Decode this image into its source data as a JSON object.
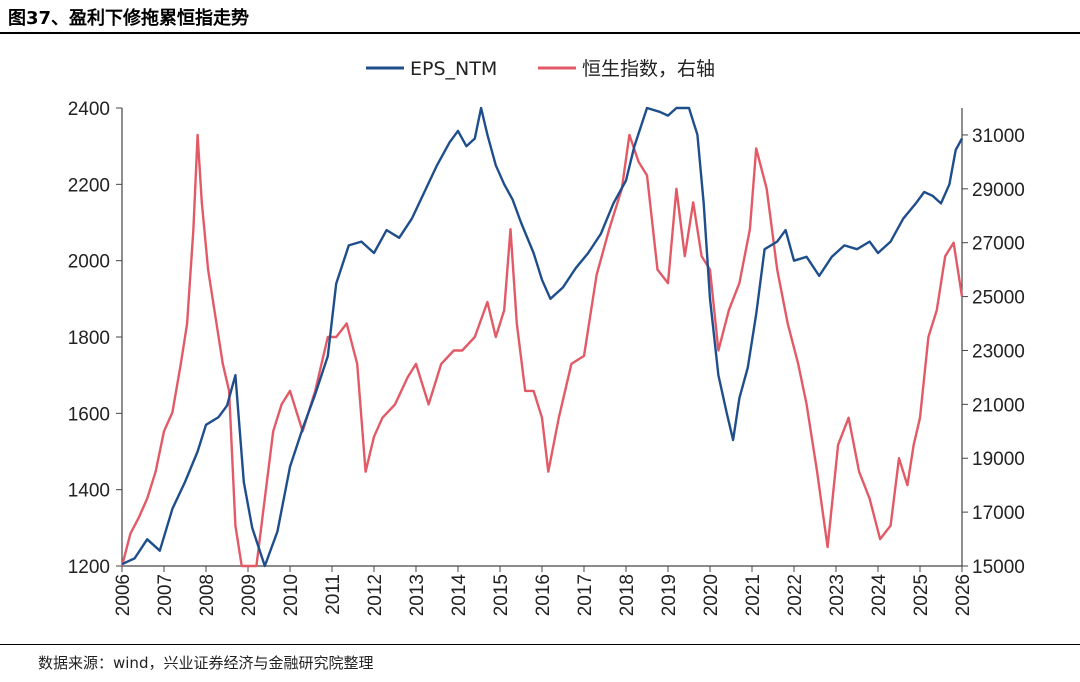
{
  "figure": {
    "title": "图37、盈利下修拖累恒指走势",
    "source": "数据来源：wind，兴业证券经济与金融研究院整理"
  },
  "chart_data": {
    "type": "line",
    "legend_position": "top-center",
    "grid": false,
    "x_ticks": [
      "2006",
      "2007",
      "2008",
      "2009",
      "2010",
      "2011",
      "2012",
      "2013",
      "2014",
      "2015",
      "2016",
      "2017",
      "2018",
      "2019",
      "2020",
      "2021",
      "2022",
      "2023",
      "2024",
      "2025",
      "2026"
    ],
    "xlim": [
      2006,
      2026
    ],
    "y_left": {
      "ylim": [
        1200,
        2400
      ],
      "ticks": [
        1200,
        1400,
        1600,
        1800,
        2000,
        2200,
        2400
      ]
    },
    "y_right": {
      "ylim": [
        15000,
        32000
      ],
      "ticks": [
        15000,
        17000,
        19000,
        21000,
        23000,
        25000,
        27000,
        29000,
        31000
      ]
    },
    "series": [
      {
        "name": "EPS_NTM",
        "axis": "left",
        "color": "#1f4e8c",
        "x": [
          2006.0,
          2006.3,
          2006.6,
          2006.9,
          2007.2,
          2007.5,
          2007.8,
          2008.0,
          2008.3,
          2008.5,
          2008.7,
          2008.9,
          2009.1,
          2009.4,
          2009.7,
          2010.0,
          2010.3,
          2010.6,
          2010.9,
          2011.1,
          2011.4,
          2011.7,
          2012.0,
          2012.3,
          2012.6,
          2012.9,
          2013.2,
          2013.5,
          2013.8,
          2014.0,
          2014.2,
          2014.4,
          2014.55,
          2014.7,
          2014.9,
          2015.1,
          2015.3,
          2015.5,
          2015.8,
          2016.0,
          2016.2,
          2016.5,
          2016.8,
          2017.1,
          2017.4,
          2017.7,
          2018.0,
          2018.2,
          2018.5,
          2018.8,
          2019.0,
          2019.2,
          2019.5,
          2019.7,
          2019.85,
          2020.0,
          2020.2,
          2020.4,
          2020.55,
          2020.7,
          2020.9,
          2021.1,
          2021.3,
          2021.6,
          2021.8,
          2022.0,
          2022.3,
          2022.6,
          2022.9,
          2023.2,
          2023.5,
          2023.8,
          2024.0,
          2024.3,
          2024.6,
          2024.9,
          2025.1,
          2025.3,
          2025.5,
          2025.7,
          2025.85,
          2026.0
        ],
        "values": [
          1205,
          1220,
          1270,
          1240,
          1350,
          1420,
          1500,
          1570,
          1590,
          1620,
          1700,
          1420,
          1300,
          1200,
          1290,
          1460,
          1560,
          1650,
          1750,
          1940,
          2040,
          2050,
          2020,
          2080,
          2060,
          2110,
          2180,
          2250,
          2310,
          2340,
          2300,
          2320,
          2400,
          2330,
          2250,
          2200,
          2160,
          2100,
          2020,
          1950,
          1900,
          1930,
          1980,
          2020,
          2070,
          2150,
          2210,
          2300,
          2400,
          2390,
          2380,
          2400,
          2400,
          2330,
          2150,
          1900,
          1700,
          1600,
          1530,
          1640,
          1720,
          1860,
          2030,
          2050,
          2080,
          2000,
          2010,
          1960,
          2010,
          2040,
          2030,
          2050,
          2020,
          2050,
          2110,
          2150,
          2180,
          2170,
          2150,
          2200,
          2290,
          2320
        ]
      },
      {
        "name": "恒生指数，右轴",
        "axis": "right",
        "color": "#e35a67",
        "x": [
          2006.0,
          2006.2,
          2006.4,
          2006.6,
          2006.8,
          2007.0,
          2007.2,
          2007.4,
          2007.55,
          2007.7,
          2007.8,
          2007.9,
          2008.05,
          2008.2,
          2008.4,
          2008.55,
          2008.7,
          2008.85,
          2009.0,
          2009.2,
          2009.4,
          2009.6,
          2009.8,
          2010.0,
          2010.3,
          2010.6,
          2010.9,
          2011.1,
          2011.35,
          2011.6,
          2011.8,
          2012.0,
          2012.2,
          2012.5,
          2012.8,
          2013.0,
          2013.3,
          2013.6,
          2013.9,
          2014.1,
          2014.4,
          2014.7,
          2014.9,
          2015.1,
          2015.25,
          2015.4,
          2015.6,
          2015.8,
          2016.0,
          2016.15,
          2016.4,
          2016.7,
          2017.0,
          2017.3,
          2017.6,
          2017.9,
          2018.08,
          2018.3,
          2018.5,
          2018.75,
          2019.0,
          2019.2,
          2019.4,
          2019.6,
          2019.8,
          2020.0,
          2020.2,
          2020.45,
          2020.7,
          2020.95,
          2021.1,
          2021.35,
          2021.6,
          2021.85,
          2022.1,
          2022.3,
          2022.55,
          2022.8,
          2023.05,
          2023.3,
          2023.55,
          2023.8,
          2024.05,
          2024.3,
          2024.5,
          2024.7,
          2024.85,
          2025.0,
          2025.2,
          2025.4,
          2025.6,
          2025.8,
          2026.0
        ],
        "values": [
          15000,
          16200,
          16800,
          17500,
          18500,
          20000,
          20700,
          22500,
          24000,
          27500,
          31000,
          28500,
          26000,
          24500,
          22500,
          21500,
          16500,
          13000,
          13600,
          14500,
          17500,
          20000,
          21000,
          21500,
          20000,
          21500,
          23500,
          23500,
          24000,
          22500,
          18500,
          19800,
          20500,
          21000,
          22000,
          22500,
          21000,
          22500,
          23000,
          23000,
          23500,
          24800,
          23500,
          24500,
          27500,
          24000,
          21500,
          21500,
          20500,
          18500,
          20500,
          22500,
          22800,
          25800,
          27500,
          29000,
          31000,
          30000,
          29500,
          26000,
          25500,
          29000,
          26500,
          28500,
          26500,
          26000,
          23000,
          24500,
          25500,
          27500,
          30500,
          29000,
          26000,
          24000,
          22500,
          21000,
          18500,
          15700,
          19500,
          20500,
          18500,
          17500,
          16000,
          16500,
          19000,
          18000,
          19500,
          20500,
          23500,
          24500,
          26500,
          27000,
          25000
        ]
      }
    ]
  }
}
